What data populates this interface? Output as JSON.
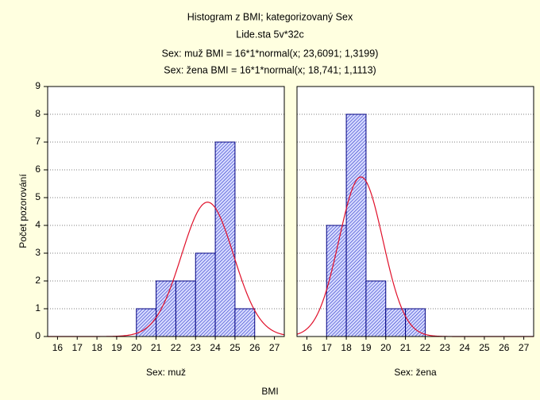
{
  "figure": {
    "title": "Histogram z BMI; kategorizovaný Sex",
    "subtitle": "Lide.sta 5v*32c",
    "fit_lines": [
      "Sex: muž BMI = 16*1*normal(x; 23,6091; 1,3199)",
      "Sex: žena BMI = 16*1*normal(x; 18,741; 1,1113)"
    ],
    "xlabel": "BMI",
    "ylabel": "Počet pozorování"
  },
  "chart_data": [
    {
      "type": "histogram",
      "title": "Sex: muž",
      "bins": [
        20,
        21,
        22,
        23,
        24,
        25,
        26
      ],
      "values": [
        1,
        2,
        2,
        3,
        7,
        1
      ],
      "fit": {
        "n": 16,
        "width": 1,
        "mean": 23.6091,
        "sd": 1.3199
      },
      "color": "#00007f",
      "curve_color": "#e0102a",
      "xlim": [
        15.5,
        27.5
      ],
      "xticks": [
        16,
        17,
        18,
        19,
        20,
        21,
        22,
        23,
        24,
        25,
        26,
        27
      ],
      "ylim": [
        0,
        9
      ],
      "yticks": [
        0,
        1,
        2,
        3,
        4,
        5,
        6,
        7,
        8,
        9
      ],
      "grid": true
    },
    {
      "type": "histogram",
      "title": "Sex: žena",
      "bins": [
        17,
        18,
        19,
        20,
        21,
        22
      ],
      "values": [
        4,
        8,
        2,
        1,
        1
      ],
      "fit": {
        "n": 16,
        "width": 1,
        "mean": 18.741,
        "sd": 1.1113
      },
      "color": "#00007f",
      "curve_color": "#e0102a",
      "xlim": [
        15.5,
        27.5
      ],
      "xticks": [
        16,
        17,
        18,
        19,
        20,
        21,
        22,
        23,
        24,
        25,
        26,
        27
      ],
      "ylim": [
        0,
        9
      ],
      "yticks": [
        0,
        1,
        2,
        3,
        4,
        5,
        6,
        7,
        8,
        9
      ],
      "grid": true
    }
  ]
}
